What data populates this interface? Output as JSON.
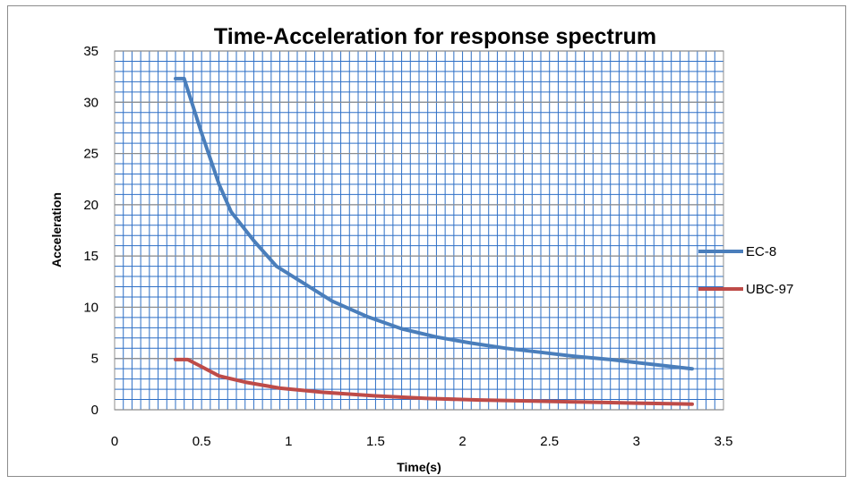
{
  "chart_data": {
    "type": "line",
    "title": "Time-Acceleration for response spectrum",
    "xlabel": "Time(s)",
    "ylabel": "Acceleration",
    "xlim": [
      0,
      3.5
    ],
    "ylim": [
      0,
      35
    ],
    "x_ticks": [
      "0",
      "0.5",
      "1",
      "1.5",
      "2",
      "2.5",
      "3",
      "3.5"
    ],
    "y_ticks": [
      "0",
      "5",
      "10",
      "15",
      "20",
      "25",
      "30",
      "35"
    ],
    "x_tick_values": [
      0,
      0.5,
      1,
      1.5,
      2,
      2.5,
      3,
      3.5
    ],
    "y_tick_values": [
      0,
      5,
      10,
      15,
      20,
      25,
      30,
      35
    ],
    "grid": true,
    "grid_color": "#2e6fc6",
    "legend_position": "right",
    "series": [
      {
        "name": "EC-8",
        "color": "#4a7ebb",
        "x": [
          0.35,
          0.4,
          0.5,
          0.6,
          0.67,
          0.8,
          0.93,
          1.1,
          1.25,
          1.45,
          1.65,
          1.85,
          2.05,
          2.25,
          2.45,
          2.65,
          2.85,
          3.05,
          3.32
        ],
        "values": [
          32.3,
          32.3,
          27,
          22,
          19.3,
          16.5,
          14,
          12.2,
          10.6,
          9.1,
          7.9,
          7.1,
          6.5,
          6.0,
          5.6,
          5.2,
          4.9,
          4.5,
          4.0
        ]
      },
      {
        "name": "UBC-97",
        "color": "#be4b48",
        "x": [
          0.35,
          0.42,
          0.5,
          0.6,
          0.75,
          0.95,
          1.2,
          1.5,
          1.8,
          2.1,
          2.4,
          2.7,
          3.0,
          3.32
        ],
        "values": [
          4.9,
          4.9,
          4.2,
          3.3,
          2.7,
          2.1,
          1.7,
          1.35,
          1.1,
          0.95,
          0.85,
          0.75,
          0.65,
          0.55
        ]
      }
    ]
  }
}
